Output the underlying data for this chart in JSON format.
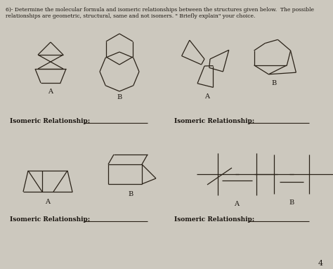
{
  "title_line1": "6)- Determine the molecular formula and isomeric relationships between the structures given below.  The possible",
  "title_line2": "relationships are geometric, structural, same and not isomers. \" Briefly explain\" your choice.",
  "bg_color": "#ccc8be",
  "page_color": "#e8e4dc",
  "page_number": "4"
}
